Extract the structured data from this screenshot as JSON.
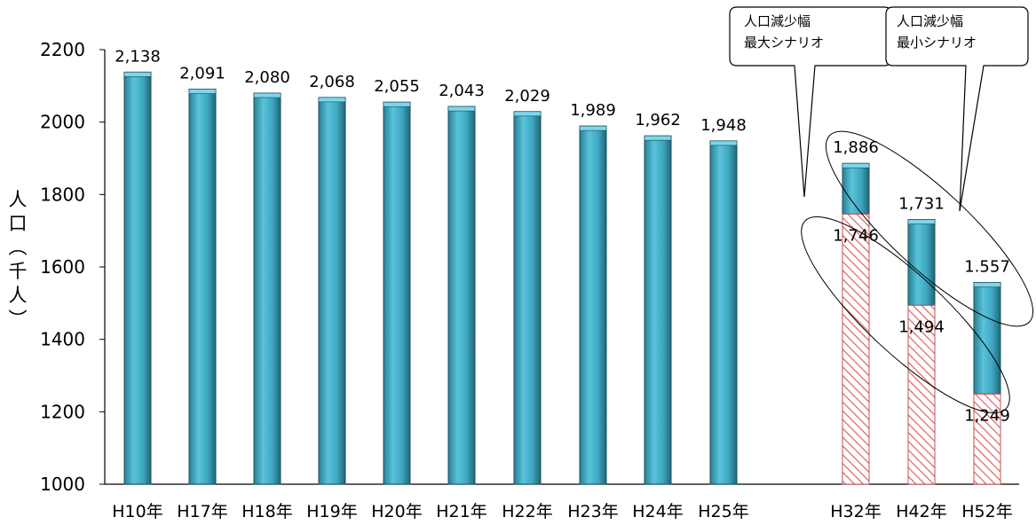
{
  "chart_data": {
    "type": "bar",
    "ylabel": "人口（千人）",
    "ylim": [
      1000,
      2200
    ],
    "yticks": [
      "1000",
      "1200",
      "1400",
      "1600",
      "1800",
      "2000",
      "2200"
    ],
    "categories": [
      "H10年",
      "H17年",
      "H18年",
      "H19年",
      "H20年",
      "H21年",
      "H22年",
      "H23年",
      "H24年",
      "H25年",
      "H32年",
      "H42年",
      "H52年"
    ],
    "values": [
      2138,
      2091,
      2080,
      2068,
      2055,
      2043,
      2029,
      1989,
      1962,
      1948,
      1886,
      1731,
      1557
    ],
    "value_labels": [
      "2,138",
      "2,091",
      "2,080",
      "2,068",
      "2,055",
      "2,043",
      "2,029",
      "1,989",
      "1,962",
      "1,948",
      "1,886",
      "1,731",
      "1.557"
    ],
    "scenario_values": [
      null,
      null,
      null,
      null,
      null,
      null,
      null,
      null,
      null,
      null,
      1746,
      1494,
      1249
    ],
    "scenario_labels": [
      "",
      "",
      "",
      "",
      "",
      "",
      "",
      "",
      "",
      "",
      "1,746",
      "1,494",
      "1,249"
    ],
    "grid": false,
    "callouts": [
      {
        "line1": "人口減少幅",
        "line2": "最大シナリオ"
      },
      {
        "line1": "人口減少幅",
        "line2": "最小シナリオ"
      }
    ],
    "colors": {
      "bar": "#4bb3cc",
      "bar_dark": "#1f5f70",
      "hatch": "#e05555"
    }
  }
}
